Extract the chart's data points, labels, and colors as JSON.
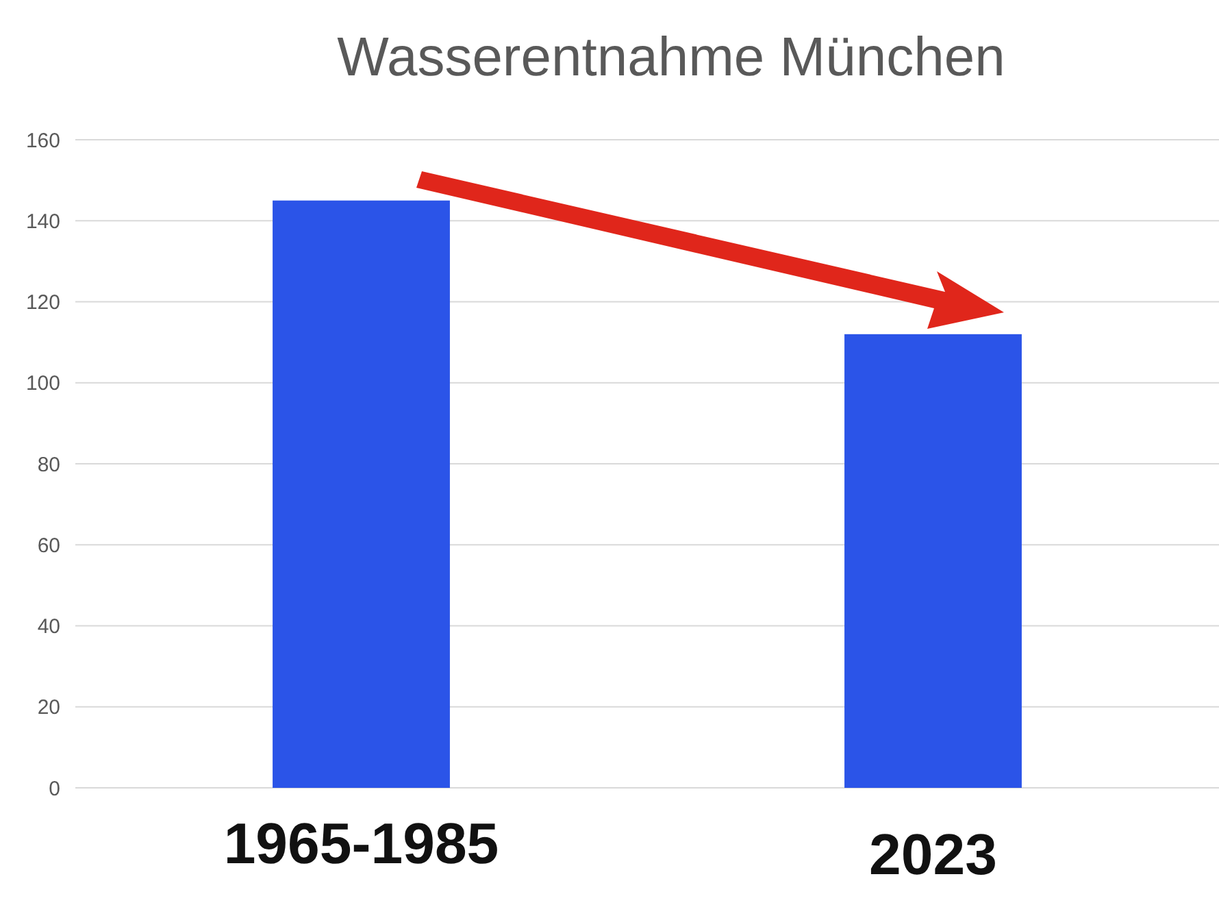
{
  "chart_data": {
    "type": "bar",
    "title": "Wasserentnahme München",
    "categories": [
      "1965-1985",
      "2023"
    ],
    "values": [
      145,
      112
    ],
    "color": "#2b54e8",
    "ylim": [
      0,
      160
    ],
    "yticks": [
      0,
      20,
      40,
      60,
      80,
      100,
      120,
      140,
      160
    ],
    "grid": "y"
  }
}
